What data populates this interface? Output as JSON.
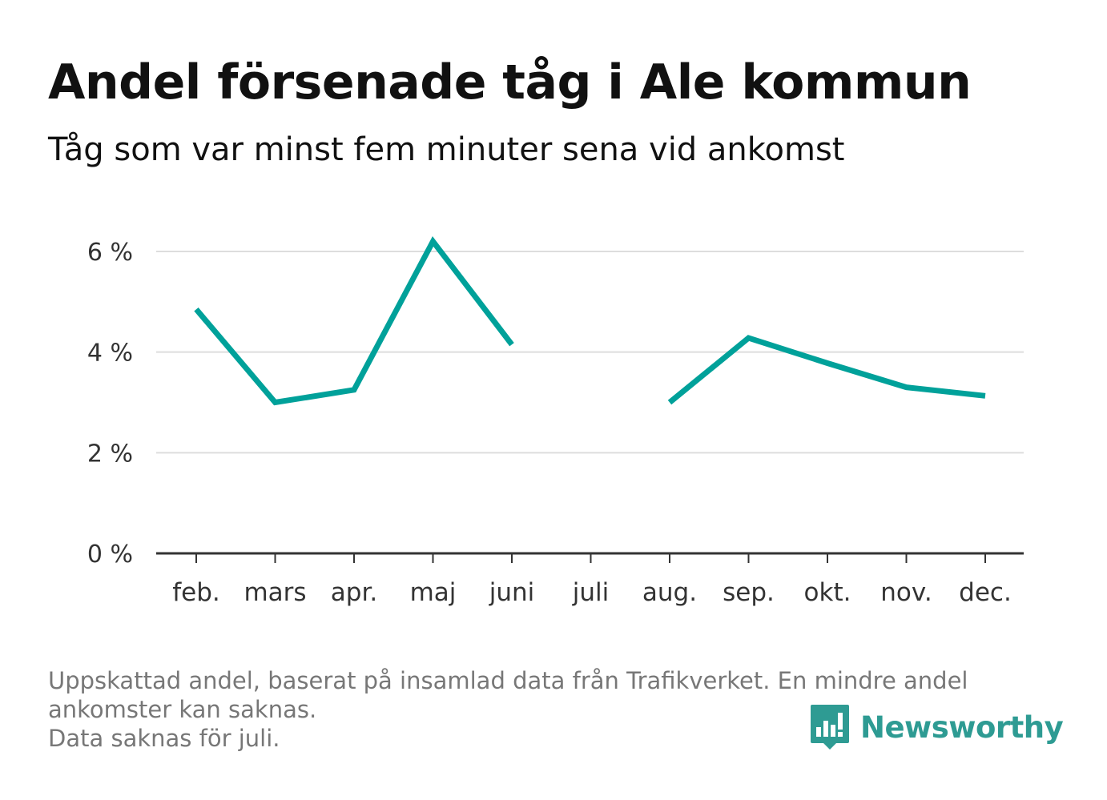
{
  "title": "Andel försenade tåg i Ale kommun",
  "subtitle": "Tåg som var minst fem minuter sena vid ankomst",
  "footnote": {
    "line1": "Uppskattad andel, baserat på insamlad data från Trafikverket. En mindre andel",
    "line2": "ankomster kan saknas.",
    "line3": "Data saknas för juli."
  },
  "brand": {
    "name": "Newsworthy",
    "logo_icon": "bar-chart-speech-bubble-icon",
    "color": "#2e9b93"
  },
  "chart_data": {
    "type": "line",
    "categories": [
      "feb.",
      "mars",
      "apr.",
      "maj",
      "juni",
      "juli",
      "aug.",
      "sep.",
      "okt.",
      "nov.",
      "dec."
    ],
    "series": [
      {
        "values": [
          4.85,
          3.0,
          3.25,
          6.2,
          4.15,
          null,
          3.0,
          4.28,
          3.78,
          3.3,
          3.13
        ],
        "color": "#00a19a"
      }
    ],
    "yticks": [
      "0 %",
      "2 %",
      "4 %",
      "6 %"
    ],
    "ytick_values": [
      0,
      2,
      4,
      6
    ],
    "ylim": [
      0,
      6.2
    ],
    "xlabel": "",
    "ylabel": "",
    "grid": true
  }
}
